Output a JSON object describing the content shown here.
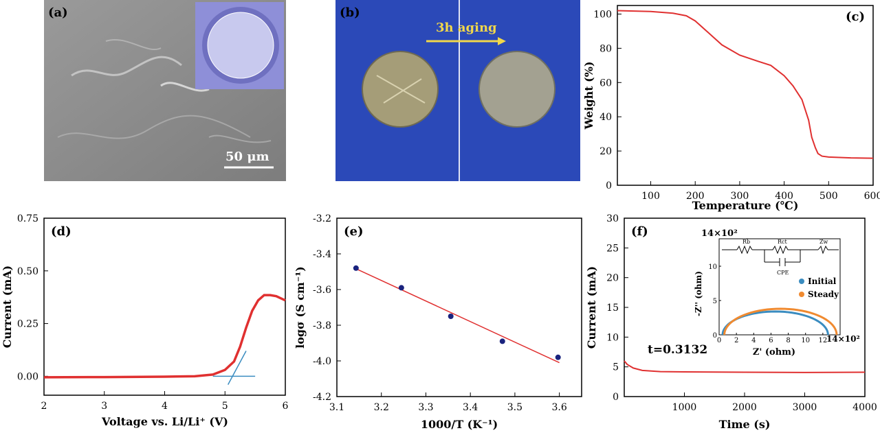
{
  "panels": {
    "a": {
      "label": "(a)",
      "scale_bar": "50 μm"
    },
    "b": {
      "label": "(b)",
      "arrow_text": "3h aging"
    },
    "c": {
      "label": "(c)"
    },
    "d": {
      "label": "(d)"
    },
    "e": {
      "label": "(e)"
    },
    "f": {
      "label": "(f)",
      "annotation": "t=0.3132",
      "inset": {
        "ylabel": "-Z'' (ohm)",
        "xlabel": "Z' (ohm)",
        "multiplier_y": "14×10²",
        "multiplier_x": "14×10²",
        "circuit": {
          "r1": "Rb",
          "r2": "Rct",
          "cpe": "CPE",
          "zw": "Zw"
        }
      }
    }
  },
  "colors": {
    "curve": "#e03030",
    "fit_line": "#e03030",
    "points": "#1a237e",
    "tangent": "#3a8cc0",
    "substrate": "#2b49b8",
    "sem_gray": "#8a8a8a"
  },
  "chart_data": [
    {
      "id": "c",
      "type": "line",
      "xlabel": "Temperature (℃)",
      "ylabel": "Weight (%)",
      "xlim": [
        25,
        600
      ],
      "ylim": [
        0,
        105
      ],
      "xticks": [
        100,
        200,
        300,
        400,
        500,
        600
      ],
      "yticks": [
        0,
        20,
        40,
        60,
        80,
        100
      ],
      "x": [
        25,
        100,
        150,
        180,
        200,
        230,
        260,
        300,
        340,
        370,
        400,
        420,
        440,
        455,
        462,
        470,
        476,
        485,
        500,
        550,
        600
      ],
      "y": [
        102,
        101.5,
        100.5,
        99,
        96,
        89,
        82,
        76,
        72.5,
        70,
        64,
        58,
        50,
        38,
        28,
        22,
        18.5,
        17,
        16.5,
        16,
        15.8
      ]
    },
    {
      "id": "d",
      "type": "line",
      "xlabel": "Voltage vs. Li/Li⁺ (V)",
      "ylabel": "Current (mA)",
      "xlim": [
        2,
        6
      ],
      "ylim": [
        -0.09,
        0.75
      ],
      "xticks": [
        2,
        3,
        4,
        5,
        6
      ],
      "yticks": [
        0.0,
        0.25,
        0.5,
        0.75
      ],
      "ytick_labels": [
        "0.00",
        "0.25",
        "0.50",
        "0.75"
      ],
      "x": [
        2,
        3,
        4,
        4.5,
        4.8,
        5.0,
        5.15,
        5.25,
        5.35,
        5.45,
        5.55,
        5.65,
        5.75,
        5.85,
        6.0
      ],
      "y": [
        -0.005,
        -0.004,
        -0.002,
        0.0,
        0.008,
        0.03,
        0.07,
        0.14,
        0.23,
        0.31,
        0.36,
        0.385,
        0.385,
        0.38,
        0.36
      ],
      "tangent": {
        "x": [
          4.8,
          5.5
        ],
        "y": [
          0.0,
          0.0
        ]
      },
      "tangent2": {
        "x": [
          5.05,
          5.35
        ],
        "y": [
          -0.04,
          0.12
        ]
      }
    },
    {
      "id": "e",
      "type": "scatter",
      "xlabel": "1000/T (K⁻¹)",
      "ylabel": "logσ (S cm⁻¹)",
      "xlim": [
        3.1,
        3.65
      ],
      "ylim": [
        -4.2,
        -3.2
      ],
      "xticks": [
        3.1,
        3.2,
        3.3,
        3.4,
        3.5,
        3.6
      ],
      "yticks": [
        -3.2,
        -3.4,
        -3.6,
        -3.8,
        -4.0,
        -4.2
      ],
      "xtick_labels": [
        "3.1",
        "3.2",
        "3.3",
        "3.4",
        "3.5",
        "3.6"
      ],
      "ytick_labels": [
        "-3.2",
        "-3.4",
        "-3.6",
        "-3.8",
        "-4.0",
        "-4.2"
      ],
      "x": [
        3.143,
        3.245,
        3.356,
        3.472,
        3.597
      ],
      "y": [
        -3.48,
        -3.59,
        -3.75,
        -3.89,
        -3.98
      ],
      "fit": {
        "x": [
          3.14,
          3.6
        ],
        "y": [
          -3.48,
          -4.01
        ]
      }
    },
    {
      "id": "f",
      "type": "line",
      "xlabel": "Time (s)",
      "ylabel": "Current (mA)",
      "xlim": [
        0,
        4000
      ],
      "ylim": [
        0,
        30
      ],
      "xticks": [
        1000,
        2000,
        3000,
        4000
      ],
      "yticks": [
        0,
        5,
        10,
        15,
        20,
        25,
        30
      ],
      "x": [
        0,
        50,
        150,
        300,
        600,
        1000,
        2000,
        3000,
        4000
      ],
      "y": [
        6,
        5.4,
        4.8,
        4.4,
        4.2,
        4.15,
        4.1,
        4.05,
        4.1
      ]
    },
    {
      "id": "f-inset",
      "type": "scatter",
      "xlim": [
        0,
        14
      ],
      "ylim": [
        0,
        14
      ],
      "xticks": [
        0,
        2,
        4,
        6,
        8,
        10,
        12,
        14
      ],
      "yticks": [
        0,
        5,
        10
      ],
      "series": [
        {
          "name": "Initial",
          "color": "#3a8cc0"
        },
        {
          "name": "Steady",
          "color": "#f08a30"
        }
      ]
    }
  ]
}
